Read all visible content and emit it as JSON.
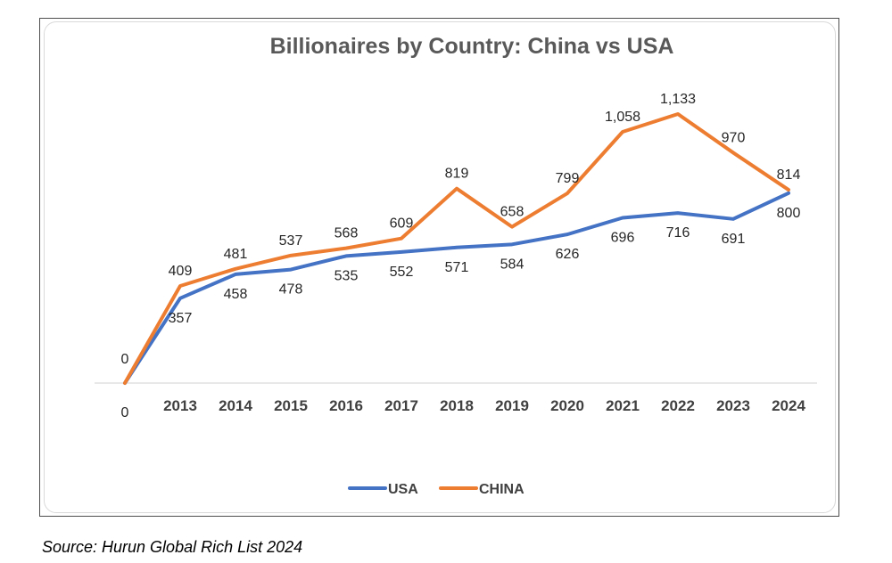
{
  "colors": {
    "usa": "#4472c4",
    "china": "#ed7d31",
    "axis": "#d9d9d9"
  },
  "chart_data": {
    "type": "line",
    "title": "Billionaires by Country: China vs USA",
    "x": [
      "",
      "2013",
      "2014",
      "2015",
      "2016",
      "2017",
      "2018",
      "2019",
      "2020",
      "2021",
      "2022",
      "2023",
      "2024"
    ],
    "series": [
      {
        "name": "USA",
        "key": "usa",
        "values": [
          0,
          357,
          458,
          478,
          535,
          552,
          571,
          584,
          626,
          696,
          716,
          691,
          800
        ],
        "labels": [
          "0",
          "357",
          "458",
          "478",
          "535",
          "552",
          "571",
          "584",
          "626",
          "696",
          "716",
          "691",
          "800"
        ]
      },
      {
        "name": "CHINA",
        "key": "china",
        "values": [
          0,
          409,
          481,
          537,
          568,
          609,
          819,
          658,
          799,
          1058,
          1133,
          970,
          814
        ],
        "labels": [
          "0",
          "409",
          "481",
          "537",
          "568",
          "609",
          "819",
          "658",
          "799",
          "1,058",
          "1,133",
          "970",
          "814"
        ]
      }
    ],
    "ylim": [
      0,
      1133
    ],
    "xlabel": "",
    "ylabel": "",
    "grid": false,
    "legend": "bottom"
  },
  "source": "Source: Hurun Global Rich List 2024"
}
